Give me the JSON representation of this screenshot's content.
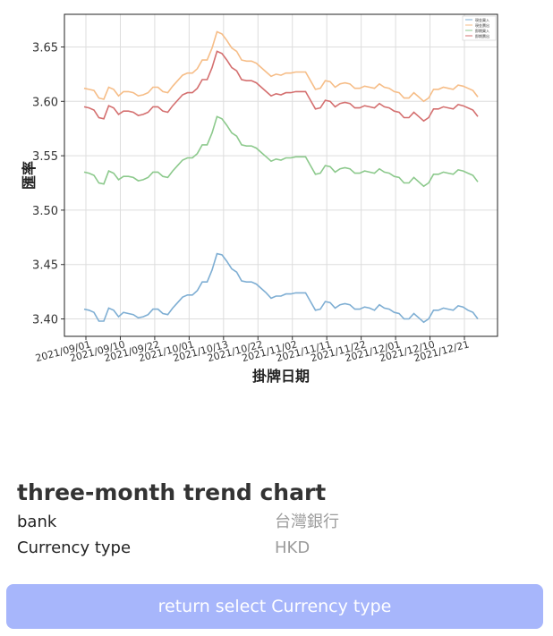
{
  "chart_data": {
    "type": "line",
    "title": "",
    "xlabel": "掛牌日期",
    "ylabel": "匯率",
    "ylim": [
      3.384,
      3.68
    ],
    "yticks": [
      3.4,
      3.45,
      3.5,
      3.55,
      3.6,
      3.65
    ],
    "ytick_labels": [
      "3.40",
      "3.45",
      "3.50",
      "3.55",
      "3.60",
      "3.65"
    ],
    "x_tick_labels": [
      "2021/09/01",
      "2021/09/10",
      "2021/09/22",
      "2021/10/01",
      "2021/10/13",
      "2021/10/22",
      "2021/11/02",
      "2021/11/11",
      "2021/11/22",
      "2021/12/01",
      "2021/12/10",
      "2021/12/21"
    ],
    "grid": true,
    "legend_position": "top-right",
    "series": [
      {
        "name": "現金買入",
        "color": "#7eaed3",
        "values": [
          3.409,
          3.408,
          3.406,
          3.398,
          3.398,
          3.41,
          3.408,
          3.402,
          3.406,
          3.405,
          3.404,
          3.401,
          3.402,
          3.404,
          3.409,
          3.409,
          3.405,
          3.404,
          3.41,
          3.415,
          3.42,
          3.422,
          3.422,
          3.426,
          3.434,
          3.434,
          3.445,
          3.46,
          3.459,
          3.453,
          3.446,
          3.443,
          3.435,
          3.434,
          3.434,
          3.432,
          3.428,
          3.424,
          3.419,
          3.421,
          3.421,
          3.423,
          3.423,
          3.424,
          3.424,
          3.424,
          3.416,
          3.408,
          3.409,
          3.416,
          3.415,
          3.41,
          3.413,
          3.414,
          3.413,
          3.409,
          3.409,
          3.411,
          3.41,
          3.408,
          3.413,
          3.41,
          3.409,
          3.406,
          3.405,
          3.4,
          3.4,
          3.405,
          3.401,
          3.397,
          3.4,
          3.408,
          3.408,
          3.41,
          3.409,
          3.408,
          3.412,
          3.411,
          3.408,
          3.406,
          3.4
        ]
      },
      {
        "name": "現金賣出",
        "color": "#f6bd87",
        "values": [
          3.612,
          3.611,
          3.61,
          3.603,
          3.602,
          3.613,
          3.611,
          3.605,
          3.609,
          3.609,
          3.608,
          3.605,
          3.606,
          3.608,
          3.613,
          3.613,
          3.609,
          3.608,
          3.614,
          3.619,
          3.624,
          3.626,
          3.626,
          3.63,
          3.638,
          3.638,
          3.649,
          3.664,
          3.662,
          3.656,
          3.649,
          3.646,
          3.638,
          3.637,
          3.637,
          3.635,
          3.631,
          3.627,
          3.623,
          3.625,
          3.624,
          3.626,
          3.626,
          3.627,
          3.627,
          3.627,
          3.619,
          3.611,
          3.612,
          3.619,
          3.618,
          3.613,
          3.616,
          3.617,
          3.616,
          3.612,
          3.612,
          3.614,
          3.613,
          3.612,
          3.616,
          3.613,
          3.612,
          3.609,
          3.608,
          3.603,
          3.603,
          3.608,
          3.604,
          3.6,
          3.603,
          3.611,
          3.611,
          3.613,
          3.612,
          3.611,
          3.615,
          3.614,
          3.612,
          3.61,
          3.604
        ]
      },
      {
        "name": "即期買入",
        "color": "#8cc98c",
        "values": [
          3.535,
          3.534,
          3.532,
          3.525,
          3.524,
          3.536,
          3.534,
          3.528,
          3.531,
          3.531,
          3.53,
          3.527,
          3.528,
          3.53,
          3.535,
          3.535,
          3.531,
          3.53,
          3.536,
          3.541,
          3.546,
          3.548,
          3.548,
          3.552,
          3.56,
          3.56,
          3.571,
          3.586,
          3.584,
          3.578,
          3.571,
          3.568,
          3.56,
          3.559,
          3.559,
          3.557,
          3.553,
          3.549,
          3.545,
          3.547,
          3.546,
          3.548,
          3.548,
          3.549,
          3.549,
          3.549,
          3.541,
          3.533,
          3.534,
          3.541,
          3.54,
          3.535,
          3.538,
          3.539,
          3.538,
          3.534,
          3.534,
          3.536,
          3.535,
          3.534,
          3.538,
          3.535,
          3.534,
          3.531,
          3.53,
          3.525,
          3.525,
          3.53,
          3.526,
          3.522,
          3.525,
          3.533,
          3.533,
          3.535,
          3.534,
          3.533,
          3.537,
          3.536,
          3.534,
          3.532,
          3.526
        ]
      },
      {
        "name": "即期賣出",
        "color": "#d46f6f",
        "values": [
          3.595,
          3.594,
          3.592,
          3.585,
          3.584,
          3.596,
          3.594,
          3.588,
          3.591,
          3.591,
          3.59,
          3.587,
          3.588,
          3.59,
          3.595,
          3.595,
          3.591,
          3.59,
          3.596,
          3.601,
          3.606,
          3.608,
          3.608,
          3.612,
          3.62,
          3.62,
          3.631,
          3.646,
          3.644,
          3.638,
          3.631,
          3.628,
          3.62,
          3.619,
          3.619,
          3.617,
          3.613,
          3.609,
          3.605,
          3.607,
          3.606,
          3.608,
          3.608,
          3.609,
          3.609,
          3.609,
          3.601,
          3.593,
          3.594,
          3.601,
          3.6,
          3.595,
          3.598,
          3.599,
          3.598,
          3.594,
          3.594,
          3.596,
          3.595,
          3.594,
          3.598,
          3.595,
          3.594,
          3.591,
          3.59,
          3.585,
          3.585,
          3.59,
          3.586,
          3.582,
          3.585,
          3.593,
          3.593,
          3.595,
          3.594,
          3.593,
          3.597,
          3.596,
          3.594,
          3.592,
          3.586
        ]
      }
    ]
  },
  "info": {
    "title": "three-month trend chart",
    "rows": [
      {
        "label": "bank",
        "value": "台灣銀行"
      },
      {
        "label": "Currency type",
        "value": "HKD"
      }
    ]
  },
  "button": {
    "label": "return select Currency type"
  },
  "colors": {
    "button_bg": "#a7b6fb",
    "value_text": "#9b9b9b"
  }
}
